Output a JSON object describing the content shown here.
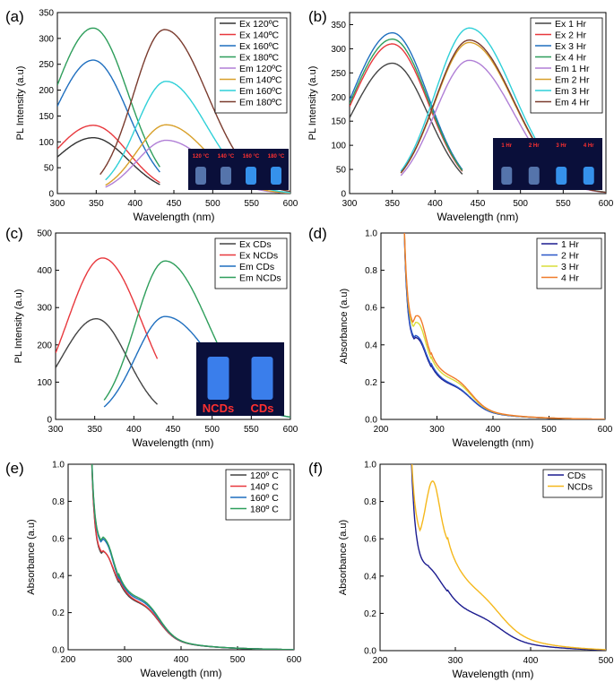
{
  "figure": {
    "title": ""
  },
  "colors": {
    "black": "#333333",
    "red": "#e8383d",
    "blue": "#1f6fbf",
    "green": "#2e9e5b",
    "purple": "#b07fd6",
    "orange": "#d8a02a",
    "cyan": "#2fd0d8",
    "brown": "#7a3b2e",
    "navy": "#1b1b8f",
    "mblue": "#2a57c8",
    "yellow": "#d9de3a",
    "lorange": "#f07a2a",
    "gold": "#f5b81c",
    "gray": "#444444"
  },
  "chart_data": [
    {
      "panel_label": "(a)",
      "type": "line",
      "xlabel": "Wavelength (nm)",
      "ylabel": "PL Intensity (a.u)",
      "xlim": [
        300,
        600
      ],
      "ylim": [
        0,
        350
      ],
      "xticks": [
        "300",
        "350",
        "400",
        "450",
        "500",
        "550",
        "600"
      ],
      "yticks": [
        "0",
        "50",
        "100",
        "150",
        "200",
        "250",
        "300",
        "350"
      ],
      "legend": "top-right",
      "series": [
        {
          "name": "Ex 120ºC",
          "color": "black",
          "kind": "ex",
          "peak": 346,
          "amp": 108,
          "left": 300,
          "right": 432,
          "wl": 50,
          "wr": 45
        },
        {
          "name": "Ex 140ºC",
          "color": "red",
          "kind": "ex",
          "peak": 346,
          "amp": 132,
          "left": 300,
          "right": 432,
          "wl": 50,
          "wr": 45
        },
        {
          "name": "Ex 160ºC",
          "color": "blue",
          "kind": "ex",
          "peak": 346,
          "amp": 258,
          "left": 300,
          "right": 432,
          "wl": 50,
          "wr": 45
        },
        {
          "name": "Ex 180ºC",
          "color": "green",
          "kind": "ex",
          "peak": 346,
          "amp": 320,
          "left": 300,
          "right": 432,
          "wl": 50,
          "wr": 45
        },
        {
          "name": "Em 120ºC",
          "color": "purple",
          "kind": "em",
          "peak": 440,
          "amp": 103,
          "left": 362,
          "right": 600,
          "wl": 38,
          "wr": 52
        },
        {
          "name": "Em 140ºC",
          "color": "orange",
          "kind": "em",
          "peak": 440,
          "amp": 133,
          "left": 362,
          "right": 600,
          "wl": 38,
          "wr": 52
        },
        {
          "name": "Em 160ºC",
          "color": "cyan",
          "kind": "em",
          "peak": 440,
          "amp": 217,
          "left": 362,
          "right": 600,
          "wl": 38,
          "wr": 52
        },
        {
          "name": "Em 180ºC",
          "color": "brown",
          "kind": "em",
          "peak": 438,
          "amp": 317,
          "left": 355,
          "right": 600,
          "wl": 40,
          "wr": 55
        }
      ],
      "photo_labels": [
        "120 °C",
        "140 °C",
        "160 °C",
        "180 °C"
      ]
    },
    {
      "panel_label": "(b)",
      "type": "line",
      "xlabel": "Wavelength (nm)",
      "ylabel": "PL Intensity (a.u)",
      "xlim": [
        300,
        600
      ],
      "ylim": [
        0,
        375
      ],
      "xticks": [
        "300",
        "350",
        "400",
        "450",
        "500",
        "550",
        "600"
      ],
      "yticks": [
        "0",
        "50",
        "100",
        "150",
        "200",
        "250",
        "300",
        "350"
      ],
      "legend": "top-right",
      "series": [
        {
          "name": "Ex 1 Hr",
          "color": "gray",
          "kind": "ex",
          "peak": 350,
          "amp": 270,
          "left": 300,
          "right": 432,
          "wl": 48,
          "wr": 42
        },
        {
          "name": "Ex 2 Hr",
          "color": "red",
          "kind": "ex",
          "peak": 350,
          "amp": 310,
          "left": 300,
          "right": 432,
          "wl": 48,
          "wr": 42
        },
        {
          "name": "Ex 3 Hr",
          "color": "blue",
          "kind": "ex",
          "peak": 350,
          "amp": 333,
          "left": 300,
          "right": 432,
          "wl": 48,
          "wr": 42
        },
        {
          "name": "Ex 4 Hr",
          "color": "green",
          "kind": "ex",
          "peak": 350,
          "amp": 320,
          "left": 300,
          "right": 432,
          "wl": 48,
          "wr": 42
        },
        {
          "name": "Em 1 Hr",
          "color": "purple",
          "kind": "em",
          "peak": 440,
          "amp": 276,
          "left": 360,
          "right": 600,
          "wl": 40,
          "wr": 52
        },
        {
          "name": "Em 2 Hr",
          "color": "orange",
          "kind": "em",
          "peak": 440,
          "amp": 313,
          "left": 360,
          "right": 600,
          "wl": 40,
          "wr": 52
        },
        {
          "name": "Em 3 Hr",
          "color": "cyan",
          "kind": "em",
          "peak": 440,
          "amp": 343,
          "left": 360,
          "right": 600,
          "wl": 40,
          "wr": 52
        },
        {
          "name": "Em 4 Hr",
          "color": "brown",
          "kind": "em",
          "peak": 440,
          "amp": 318,
          "left": 360,
          "right": 600,
          "wl": 40,
          "wr": 52
        }
      ],
      "photo_labels": [
        "1 Hr",
        "2 Hr",
        "3 Hr",
        "4 Hr"
      ]
    },
    {
      "panel_label": "(c)",
      "type": "line",
      "xlabel": "Wavelength (nm)",
      "ylabel": "PL Intensity (a.u)",
      "xlim": [
        300,
        600
      ],
      "ylim": [
        0,
        500
      ],
      "xticks": [
        "300",
        "350",
        "400",
        "450",
        "500",
        "550",
        "600"
      ],
      "yticks": [
        "0",
        "100",
        "200",
        "300",
        "400",
        "500"
      ],
      "legend": "top-right",
      "series": [
        {
          "name": "Ex CDs",
          "color": "gray",
          "kind": "ex",
          "peak": 352,
          "amp": 270,
          "left": 300,
          "right": 430,
          "wl": 45,
          "wr": 40
        },
        {
          "name": "Ex NCDs",
          "color": "red",
          "kind": "ex",
          "peak": 360,
          "amp": 433,
          "left": 300,
          "right": 430,
          "wl": 45,
          "wr": 50
        },
        {
          "name": "Em CDs",
          "color": "blue",
          "kind": "em",
          "peak": 440,
          "amp": 276,
          "left": 362,
          "right": 600,
          "wl": 38,
          "wr": 58
        },
        {
          "name": "Em NCDs",
          "color": "green",
          "kind": "em",
          "peak": 440,
          "amp": 425,
          "left": 362,
          "right": 600,
          "wl": 38,
          "wr": 55
        }
      ],
      "photo_labels": [
        "NCDs",
        "CDs"
      ]
    },
    {
      "panel_label": "(d)",
      "type": "line",
      "xlabel": "Wavelength (nm)",
      "ylabel": "Absorbance (a.u)",
      "xlim": [
        200,
        600
      ],
      "ylim": [
        0,
        1.0
      ],
      "xticks": [
        "200",
        "300",
        "400",
        "500",
        "600"
      ],
      "yticks": [
        "0.0",
        "0.2",
        "0.4",
        "0.6",
        "0.8",
        "1.0"
      ],
      "legend": "top-right",
      "series": [
        {
          "name": "1 Hr",
          "color": "navy",
          "bump": 0.44,
          "dip": 0.39,
          "base": 0.26,
          "shoulder": 0.13
        },
        {
          "name": "2 Hr",
          "color": "mblue",
          "bump": 0.45,
          "dip": 0.4,
          "base": 0.27,
          "shoulder": 0.13
        },
        {
          "name": "3 Hr",
          "color": "yellow",
          "bump": 0.53,
          "dip": 0.45,
          "base": 0.3,
          "shoulder": 0.16
        },
        {
          "name": "4 Hr",
          "color": "lorange",
          "bump": 0.57,
          "dip": 0.47,
          "base": 0.32,
          "shoulder": 0.17
        }
      ]
    },
    {
      "panel_label": "(e)",
      "type": "line",
      "xlabel": "Wavelength (nm)",
      "ylabel": "Absorbance (a.u)",
      "xlim": [
        200,
        600
      ],
      "ylim": [
        0,
        1.0
      ],
      "xticks": [
        "200",
        "300",
        "400",
        "500",
        "600"
      ],
      "yticks": [
        "0.0",
        "0.2",
        "0.4",
        "0.6",
        "0.8",
        "1.0"
      ],
      "legend": "top-right",
      "series": [
        {
          "name": "120º C",
          "color": "gray",
          "bump": 0.53,
          "dip": 0.48,
          "base": 0.34,
          "shoulder": 0.2
        },
        {
          "name": "140º C",
          "color": "red",
          "bump": 0.53,
          "dip": 0.49,
          "base": 0.35,
          "shoulder": 0.2
        },
        {
          "name": "160º C",
          "color": "blue",
          "bump": 0.6,
          "dip": 0.54,
          "base": 0.36,
          "shoulder": 0.22
        },
        {
          "name": "180º C",
          "color": "green",
          "bump": 0.61,
          "dip": 0.55,
          "base": 0.37,
          "shoulder": 0.23
        }
      ]
    },
    {
      "panel_label": "(f)",
      "type": "line",
      "xlabel": "Wavelength (nm)",
      "ylabel": "Absorbance (a.u)",
      "xlim": [
        200,
        500
      ],
      "ylim": [
        0,
        1.0
      ],
      "xticks": [
        "200",
        "300",
        "400",
        "500"
      ],
      "yticks": [
        "0.0",
        "0.2",
        "0.4",
        "0.6",
        "0.8",
        "1.0"
      ],
      "legend": "top-right",
      "series": [
        {
          "name": "CDs",
          "color": "navy",
          "bump": 0.45,
          "dip": 0.43,
          "base": 0.3,
          "shoulder": 0.12
        },
        {
          "name": "NCDs",
          "color": "gold",
          "bump": 0.9,
          "dip": 0.57,
          "base": 0.55,
          "shoulder": 0.18
        }
      ]
    }
  ]
}
